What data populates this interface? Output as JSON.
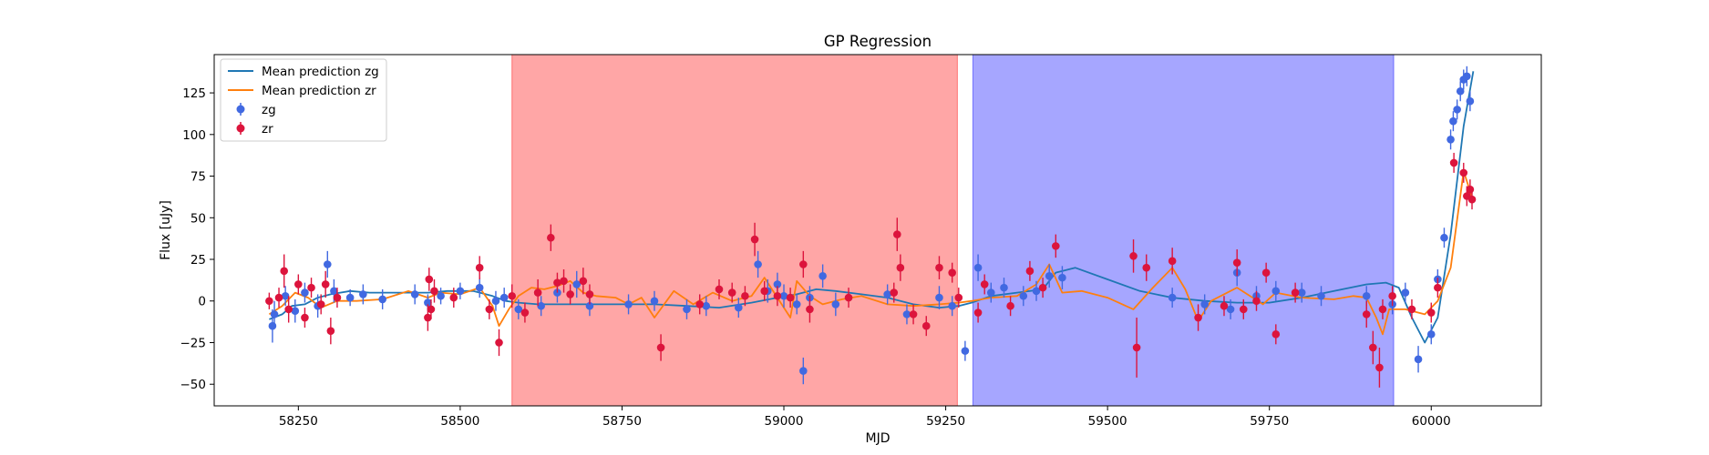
{
  "chart_data": {
    "type": "scatter",
    "title": "GP Regression",
    "xlabel": "MJD",
    "ylabel": "Flux [uJy]",
    "xlim": [
      58120,
      60170
    ],
    "ylim": [
      -63,
      148
    ],
    "x_ticks": [
      58250,
      58500,
      58750,
      59000,
      59250,
      59500,
      59750,
      60000
    ],
    "x_tick_labels": [
      "58250",
      "58500",
      "58750",
      "59000",
      "59250",
      "59500",
      "59750",
      "60000"
    ],
    "y_ticks": [
      -50,
      -25,
      0,
      25,
      50,
      75,
      100,
      125
    ],
    "y_tick_labels": [
      "−50",
      "−25",
      "0",
      "25",
      "50",
      "75",
      "100",
      "125"
    ],
    "grid": false,
    "legend_position": "top-left",
    "spans": [
      {
        "x_start": 58580,
        "x_end": 59268,
        "color": "#ff0000",
        "opacity": 0.35
      },
      {
        "x_start": 59292,
        "x_end": 59942,
        "color": "#0000ff",
        "opacity": 0.35
      }
    ],
    "legend": [
      {
        "label": "Mean prediction zg",
        "kind": "line",
        "color": "#1f77b4"
      },
      {
        "label": "Mean prediction zr",
        "kind": "line",
        "color": "#ff7f0e"
      },
      {
        "label": "zg",
        "kind": "point",
        "color": "#4169e1"
      },
      {
        "label": "zr",
        "kind": "point",
        "color": "#dc143c"
      }
    ],
    "series": [
      {
        "name": "Mean prediction zg",
        "kind": "line",
        "color": "#1f77b4",
        "x": [
          58205,
          58225,
          58240,
          58260,
          58280,
          58300,
          58330,
          58360,
          58400,
          58450,
          58480,
          58520,
          58550,
          58570,
          58590,
          58620,
          58660,
          58700,
          58750,
          58800,
          58850,
          58900,
          58950,
          58990,
          59020,
          59050,
          59080,
          59120,
          59160,
          59200,
          59240,
          59270,
          59290,
          59320,
          59360,
          59400,
          59420,
          59450,
          59500,
          59550,
          59600,
          59650,
          59700,
          59750,
          59800,
          59850,
          59900,
          59930,
          59950,
          59970,
          59990,
          60010,
          60030,
          60050,
          60065
        ],
        "y": [
          -11,
          -8,
          -3,
          -2,
          2,
          4,
          6,
          5,
          5,
          5,
          6,
          6,
          3,
          0,
          -1,
          -2,
          -2,
          -2,
          -2,
          -2,
          -3,
          -4,
          -1,
          2,
          4,
          7,
          6,
          4,
          2,
          -2,
          -4,
          -3,
          -1,
          3,
          5,
          7,
          17,
          20,
          13,
          6,
          2,
          0,
          -1,
          -1,
          2,
          6,
          10,
          11,
          8,
          -10,
          -25,
          -10,
          40,
          105,
          138
        ]
      },
      {
        "name": "Mean prediction zr",
        "kind": "line",
        "color": "#ff7f0e",
        "x": [
          58205,
          58225,
          58245,
          58265,
          58285,
          58310,
          58340,
          58380,
          58420,
          58450,
          58470,
          58500,
          58530,
          58550,
          58560,
          58575,
          58590,
          58610,
          58630,
          58650,
          58670,
          58690,
          58710,
          58740,
          58760,
          58780,
          58800,
          58830,
          58860,
          58890,
          58920,
          58950,
          58970,
          58990,
          59010,
          59020,
          59040,
          59060,
          59090,
          59120,
          59160,
          59200,
          59240,
          59270,
          59290,
          59320,
          59360,
          59390,
          59410,
          59430,
          59460,
          59500,
          59540,
          59570,
          59600,
          59620,
          59640,
          59660,
          59700,
          59740,
          59760,
          59800,
          59850,
          59880,
          59900,
          59915,
          59925,
          59935,
          59960,
          59990,
          60010,
          60030,
          60050,
          60065
        ],
        "y": [
          -8,
          -3,
          5,
          2,
          -4,
          0,
          0,
          1,
          6,
          2,
          5,
          4,
          8,
          -3,
          -15,
          -5,
          3,
          8,
          7,
          9,
          12,
          5,
          3,
          2,
          -2,
          2,
          -10,
          6,
          -2,
          5,
          0,
          3,
          14,
          2,
          -10,
          12,
          3,
          -2,
          1,
          3,
          -2,
          -3,
          -2,
          -1,
          0,
          2,
          3,
          10,
          22,
          5,
          6,
          2,
          -5,
          8,
          20,
          7,
          -12,
          0,
          8,
          -2,
          5,
          2,
          1,
          3,
          2,
          -10,
          -20,
          -5,
          -5,
          -8,
          0,
          20,
          78,
          60
        ]
      },
      {
        "name": "zg",
        "kind": "errorbar",
        "color": "#4169e1",
        "points": [
          [
            58210,
            -15,
            10
          ],
          [
            58213,
            -8,
            8
          ],
          [
            58230,
            3,
            6
          ],
          [
            58245,
            -6,
            7
          ],
          [
            58260,
            5,
            6
          ],
          [
            58280,
            -3,
            7
          ],
          [
            58295,
            22,
            8
          ],
          [
            58305,
            6,
            7
          ],
          [
            58330,
            2,
            5
          ],
          [
            58350,
            4,
            6
          ],
          [
            58380,
            1,
            6
          ],
          [
            58430,
            4,
            6
          ],
          [
            58450,
            -1,
            5
          ],
          [
            58470,
            3,
            5
          ],
          [
            58500,
            6,
            5
          ],
          [
            58530,
            8,
            6
          ],
          [
            58555,
            0,
            6
          ],
          [
            58568,
            2,
            6
          ],
          [
            58590,
            -5,
            6
          ],
          [
            58625,
            -3,
            6
          ],
          [
            58650,
            5,
            6
          ],
          [
            58680,
            10,
            8
          ],
          [
            58700,
            -3,
            6
          ],
          [
            58760,
            -2,
            6
          ],
          [
            58800,
            0,
            6
          ],
          [
            58850,
            -5,
            6
          ],
          [
            58880,
            -3,
            6
          ],
          [
            58930,
            -4,
            6
          ],
          [
            58960,
            22,
            8
          ],
          [
            58975,
            6,
            7
          ],
          [
            58990,
            10,
            7
          ],
          [
            59000,
            3,
            7
          ],
          [
            59020,
            -2,
            6
          ],
          [
            59030,
            -42,
            8
          ],
          [
            59040,
            2,
            7
          ],
          [
            59060,
            15,
            7
          ],
          [
            59080,
            -2,
            7
          ],
          [
            59160,
            4,
            6
          ],
          [
            59190,
            -8,
            6
          ],
          [
            59240,
            2,
            7
          ],
          [
            59260,
            -3,
            6
          ],
          [
            59280,
            -30,
            6
          ],
          [
            59300,
            20,
            8
          ],
          [
            59320,
            5,
            6
          ],
          [
            59340,
            8,
            6
          ],
          [
            59370,
            3,
            6
          ],
          [
            59390,
            6,
            6
          ],
          [
            59410,
            15,
            7
          ],
          [
            59430,
            14,
            7
          ],
          [
            59600,
            2,
            6
          ],
          [
            59650,
            -2,
            6
          ],
          [
            59690,
            -5,
            6
          ],
          [
            59700,
            17,
            8
          ],
          [
            59730,
            3,
            6
          ],
          [
            59760,
            6,
            6
          ],
          [
            59800,
            5,
            6
          ],
          [
            59830,
            3,
            6
          ],
          [
            59900,
            3,
            6
          ],
          [
            59940,
            -2,
            6
          ],
          [
            59960,
            5,
            6
          ],
          [
            59980,
            -35,
            8
          ],
          [
            60000,
            -20,
            6
          ],
          [
            60010,
            13,
            6
          ],
          [
            60020,
            38,
            6
          ],
          [
            60030,
            97,
            6
          ],
          [
            60034,
            108,
            6
          ],
          [
            60040,
            115,
            6
          ],
          [
            60045,
            126,
            6
          ],
          [
            60050,
            133,
            6
          ],
          [
            60055,
            135,
            6
          ],
          [
            60060,
            120,
            6
          ]
        ]
      },
      {
        "name": "zr",
        "kind": "errorbar",
        "color": "#dc143c",
        "points": [
          [
            58205,
            0,
            5
          ],
          [
            58220,
            2,
            6
          ],
          [
            58228,
            18,
            10
          ],
          [
            58235,
            -5,
            8
          ],
          [
            58250,
            10,
            6
          ],
          [
            58260,
            -10,
            6
          ],
          [
            58270,
            8,
            6
          ],
          [
            58285,
            -2,
            6
          ],
          [
            58292,
            10,
            8
          ],
          [
            58300,
            -18,
            8
          ],
          [
            58310,
            2,
            6
          ],
          [
            58450,
            -10,
            8
          ],
          [
            58452,
            13,
            7
          ],
          [
            58455,
            -5,
            6
          ],
          [
            58460,
            6,
            7
          ],
          [
            58490,
            2,
            6
          ],
          [
            58530,
            20,
            7
          ],
          [
            58545,
            -5,
            6
          ],
          [
            58560,
            -25,
            8
          ],
          [
            58580,
            3,
            7
          ],
          [
            58600,
            -7,
            6
          ],
          [
            58620,
            5,
            8
          ],
          [
            58640,
            38,
            8
          ],
          [
            58650,
            11,
            6
          ],
          [
            58660,
            12,
            7
          ],
          [
            58670,
            4,
            6
          ],
          [
            58690,
            12,
            8
          ],
          [
            58700,
            4,
            6
          ],
          [
            58810,
            -28,
            8
          ],
          [
            58870,
            -2,
            6
          ],
          [
            58900,
            7,
            6
          ],
          [
            58920,
            5,
            6
          ],
          [
            58940,
            3,
            6
          ],
          [
            58955,
            37,
            10
          ],
          [
            58970,
            6,
            6
          ],
          [
            58990,
            3,
            6
          ],
          [
            59010,
            2,
            6
          ],
          [
            59030,
            22,
            8
          ],
          [
            59040,
            -5,
            8
          ],
          [
            59100,
            2,
            6
          ],
          [
            59170,
            5,
            6
          ],
          [
            59175,
            40,
            10
          ],
          [
            59180,
            20,
            8
          ],
          [
            59200,
            -8,
            6
          ],
          [
            59220,
            -15,
            6
          ],
          [
            59240,
            20,
            7
          ],
          [
            59260,
            17,
            6
          ],
          [
            59270,
            2,
            6
          ],
          [
            59300,
            -7,
            6
          ],
          [
            59310,
            10,
            6
          ],
          [
            59350,
            -3,
            6
          ],
          [
            59380,
            18,
            6
          ],
          [
            59400,
            8,
            6
          ],
          [
            59420,
            33,
            7
          ],
          [
            59540,
            27,
            10
          ],
          [
            59545,
            -28,
            18
          ],
          [
            59560,
            20,
            8
          ],
          [
            59600,
            24,
            8
          ],
          [
            59640,
            -10,
            8
          ],
          [
            59680,
            -3,
            6
          ],
          [
            59700,
            23,
            8
          ],
          [
            59710,
            -5,
            6
          ],
          [
            59730,
            0,
            6
          ],
          [
            59745,
            17,
            6
          ],
          [
            59760,
            -20,
            6
          ],
          [
            59790,
            5,
            6
          ],
          [
            59900,
            -8,
            8
          ],
          [
            59910,
            -28,
            10
          ],
          [
            59920,
            -40,
            12
          ],
          [
            59925,
            -5,
            6
          ],
          [
            59940,
            3,
            6
          ],
          [
            59970,
            -5,
            6
          ],
          [
            60000,
            -7,
            6
          ],
          [
            60010,
            8,
            6
          ],
          [
            60035,
            83,
            6
          ],
          [
            60050,
            77,
            6
          ],
          [
            60055,
            63,
            6
          ],
          [
            60060,
            67,
            6
          ],
          [
            60063,
            61,
            6
          ]
        ]
      }
    ]
  }
}
